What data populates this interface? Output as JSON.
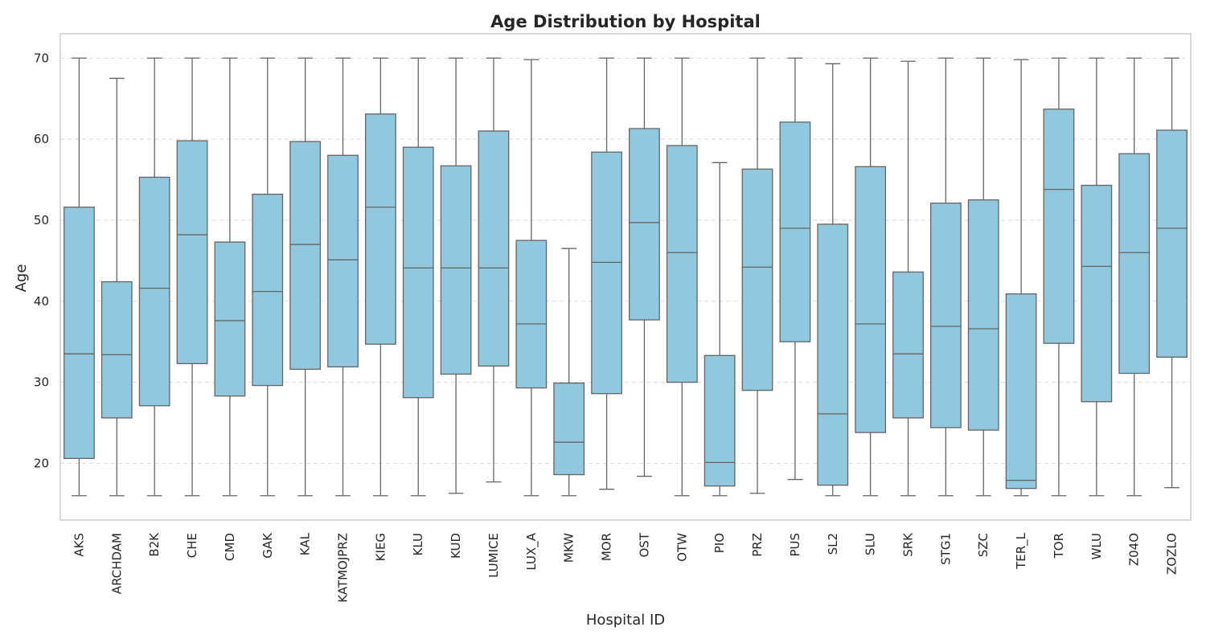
{
  "chart_data": {
    "type": "box",
    "title": "Age Distribution by Hospital",
    "xlabel": "Hospital ID",
    "ylabel": "Age",
    "ylim": [
      13,
      73
    ],
    "yticks": [
      20,
      30,
      40,
      50,
      60,
      70
    ],
    "grid": "y-dashed",
    "box_color": "#92c8df",
    "line_color": "#646464",
    "categories": [
      "AKS",
      "ARCHDAM",
      "B2K",
      "CHE",
      "CMD",
      "GAK",
      "KAL",
      "KATMOJPRZ",
      "KIEG",
      "KLU",
      "KUD",
      "LUMICE",
      "LUX_A",
      "MKW",
      "MOR",
      "OST",
      "OTW",
      "PIO",
      "PRZ",
      "PUS",
      "SL2",
      "SLU",
      "SRK",
      "STG1",
      "SZC",
      "TER_L",
      "TOR",
      "WLU",
      "Z04O",
      "ZOZLO"
    ],
    "boxes": [
      {
        "whislo": 16,
        "q1": 20.6,
        "med": 33.5,
        "q3": 51.6,
        "whishi": 70
      },
      {
        "whislo": 16,
        "q1": 25.6,
        "med": 33.4,
        "q3": 42.4,
        "whishi": 67.5
      },
      {
        "whislo": 16,
        "q1": 27.1,
        "med": 41.6,
        "q3": 55.3,
        "whishi": 70
      },
      {
        "whislo": 16,
        "q1": 32.3,
        "med": 48.2,
        "q3": 59.8,
        "whishi": 70
      },
      {
        "whislo": 16,
        "q1": 28.3,
        "med": 37.6,
        "q3": 47.3,
        "whishi": 70
      },
      {
        "whislo": 16,
        "q1": 29.6,
        "med": 41.2,
        "q3": 53.2,
        "whishi": 70
      },
      {
        "whislo": 16,
        "q1": 31.6,
        "med": 47,
        "q3": 59.7,
        "whishi": 70
      },
      {
        "whislo": 16,
        "q1": 31.9,
        "med": 45.1,
        "q3": 58,
        "whishi": 70
      },
      {
        "whislo": 16,
        "q1": 34.7,
        "med": 51.6,
        "q3": 63.1,
        "whishi": 70
      },
      {
        "whislo": 16,
        "q1": 28.1,
        "med": 44.1,
        "q3": 59,
        "whishi": 70
      },
      {
        "whislo": 16.3,
        "q1": 31,
        "med": 44.1,
        "q3": 56.7,
        "whishi": 70
      },
      {
        "whislo": 17.7,
        "q1": 32,
        "med": 44.1,
        "q3": 61,
        "whishi": 70
      },
      {
        "whislo": 16,
        "q1": 29.3,
        "med": 37.2,
        "q3": 47.5,
        "whishi": 69.8
      },
      {
        "whislo": 16,
        "q1": 18.6,
        "med": 22.6,
        "q3": 29.9,
        "whishi": 46.5
      },
      {
        "whislo": 16.8,
        "q1": 28.6,
        "med": 44.8,
        "q3": 58.4,
        "whishi": 70
      },
      {
        "whislo": 18.4,
        "q1": 37.7,
        "med": 49.7,
        "q3": 61.3,
        "whishi": 70
      },
      {
        "whislo": 16,
        "q1": 30,
        "med": 46,
        "q3": 59.2,
        "whishi": 70
      },
      {
        "whislo": 16,
        "q1": 17.2,
        "med": 20.1,
        "q3": 33.3,
        "whishi": 57.1
      },
      {
        "whislo": 16.3,
        "q1": 29,
        "med": 44.2,
        "q3": 56.3,
        "whishi": 70
      },
      {
        "whislo": 18,
        "q1": 35,
        "med": 49,
        "q3": 62.1,
        "whishi": 70
      },
      {
        "whislo": 16,
        "q1": 17.3,
        "med": 26.1,
        "q3": 49.5,
        "whishi": 69.3
      },
      {
        "whislo": 16,
        "q1": 23.8,
        "med": 37.2,
        "q3": 56.6,
        "whishi": 70
      },
      {
        "whislo": 16,
        "q1": 25.6,
        "med": 33.5,
        "q3": 43.6,
        "whishi": 69.6
      },
      {
        "whislo": 16,
        "q1": 24.4,
        "med": 36.9,
        "q3": 52.1,
        "whishi": 70
      },
      {
        "whislo": 16,
        "q1": 24.1,
        "med": 36.6,
        "q3": 52.5,
        "whishi": 70
      },
      {
        "whislo": 16,
        "q1": 16.9,
        "med": 17.9,
        "q3": 40.9,
        "whishi": 69.8
      },
      {
        "whislo": 16,
        "q1": 34.8,
        "med": 53.8,
        "q3": 63.7,
        "whishi": 70
      },
      {
        "whislo": 16,
        "q1": 27.6,
        "med": 44.3,
        "q3": 54.3,
        "whishi": 70
      },
      {
        "whislo": 16,
        "q1": 31.1,
        "med": 46,
        "q3": 58.2,
        "whishi": 70
      },
      {
        "whislo": 17,
        "q1": 33.1,
        "med": 49,
        "q3": 61.1,
        "whishi": 70
      }
    ]
  }
}
